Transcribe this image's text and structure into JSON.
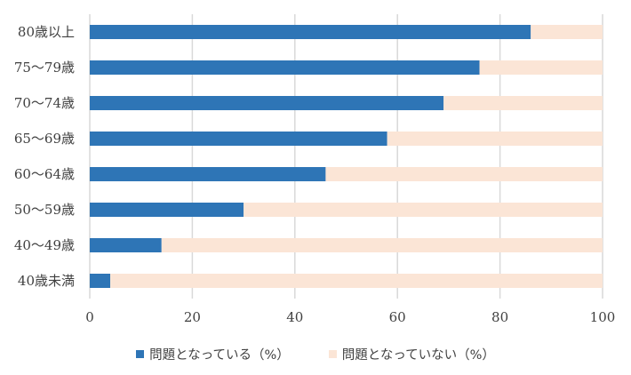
{
  "chart_data": {
    "type": "bar",
    "orientation": "horizontal",
    "stacked": true,
    "categories": [
      "80歳以上",
      "75～79歳",
      "70～74歳",
      "65～69歳",
      "60～64歳",
      "50～59歳",
      "40～49歳",
      "40歳未満"
    ],
    "series": [
      {
        "name": "問題となっている（%）",
        "color": "#2e75b6",
        "values": [
          86,
          76,
          69,
          58,
          46,
          30,
          14,
          4
        ]
      },
      {
        "name": "問題となっていない（%）",
        "color": "#fbe5d6",
        "values": [
          14,
          24,
          31,
          42,
          54,
          70,
          86,
          96
        ]
      }
    ],
    "x_ticks": [
      "0",
      "20",
      "40",
      "60",
      "80",
      "100"
    ],
    "xlim": [
      0,
      100
    ],
    "grid": "vertical",
    "legend_position": "bottom"
  }
}
